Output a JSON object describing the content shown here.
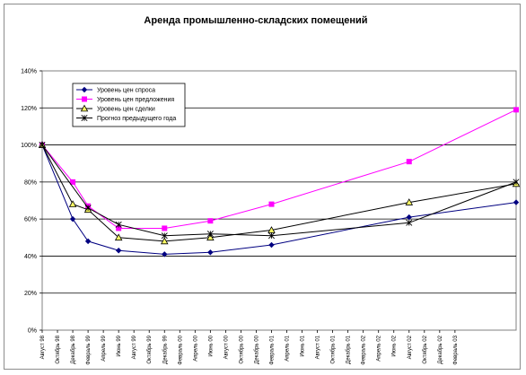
{
  "chart_data": {
    "type": "line",
    "title": "Аренда промышленно-складских помещений",
    "xlabel": "",
    "ylabel": "",
    "ylim": [
      0,
      140
    ],
    "y_ticks": [
      "0%",
      "20%",
      "40%",
      "60%",
      "80%",
      "100%",
      "120%",
      "140%"
    ],
    "grid": "horizontal",
    "legend_position": "top-left",
    "categories": [
      "Август 98",
      "Октябрь 98",
      "Декабрь 98",
      "Февраль 99",
      "Апрель 99",
      "Июнь 99",
      "Август 99",
      "Октябрь 99",
      "Декабрь 99",
      "Февраль 00",
      "Апрель 00",
      "Июнь 00",
      "Август 00",
      "Октябрь 00",
      "Декабрь 00",
      "Февраль 01",
      "Апрель 01",
      "Июнь 01",
      "Август 01",
      "Октябрь 01",
      "Декабрь 01",
      "Февраль 02",
      "Апрель 02",
      "Июнь 02",
      "Август 02",
      "Октябрь 02",
      "Декабрь 02",
      "Февраль 03"
    ],
    "series": [
      {
        "name": "Уровень цен спроса",
        "color": "#000080",
        "marker": "diamond",
        "points": [
          [
            0,
            100
          ],
          [
            2,
            60
          ],
          [
            3,
            48
          ],
          [
            5,
            43
          ],
          [
            8,
            41
          ],
          [
            11,
            42
          ],
          [
            15,
            46
          ],
          [
            24,
            61
          ],
          [
            31,
            69
          ]
        ]
      },
      {
        "name": "Уровень цен предложения",
        "color": "#ff00ff",
        "marker": "square",
        "points": [
          [
            0,
            100
          ],
          [
            2,
            80
          ],
          [
            3,
            67
          ],
          [
            5,
            55
          ],
          [
            8,
            55
          ],
          [
            11,
            59
          ],
          [
            15,
            68
          ],
          [
            24,
            91
          ],
          [
            31,
            119
          ]
        ]
      },
      {
        "name": "Уровень цен сделки",
        "color": "#000000",
        "marker": "triangle",
        "points": [
          [
            0,
            100
          ],
          [
            2,
            68
          ],
          [
            3,
            65
          ],
          [
            5,
            50
          ],
          [
            8,
            48
          ],
          [
            11,
            50
          ],
          [
            15,
            54
          ],
          [
            24,
            69
          ],
          [
            31,
            79
          ]
        ]
      },
      {
        "name": "Прогноз предыдущего года",
        "color": "#000000",
        "marker": "star",
        "points": [
          [
            0,
            100
          ],
          [
            3,
            66
          ],
          [
            5,
            57
          ],
          [
            8,
            51
          ],
          [
            11,
            52
          ],
          [
            15,
            51
          ],
          [
            24,
            58
          ],
          [
            31,
            80
          ]
        ]
      }
    ]
  }
}
